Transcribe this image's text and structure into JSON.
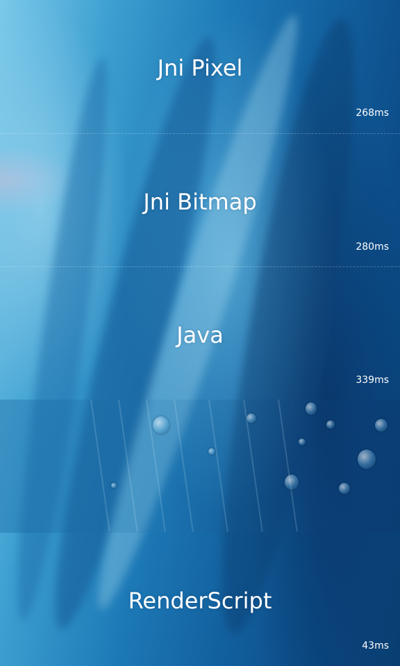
{
  "panels": [
    {
      "title": "Jni Pixel",
      "time": "268ms"
    },
    {
      "title": "Jni Bitmap",
      "time": "280ms"
    },
    {
      "title": "Java",
      "time": "339ms"
    },
    {
      "title": "",
      "time": ""
    },
    {
      "title": "RenderScript",
      "time": "43ms"
    }
  ],
  "colors": {
    "text": "#ffffff",
    "background_dark": "#083e70",
    "background_light": "#7cc9ea"
  }
}
